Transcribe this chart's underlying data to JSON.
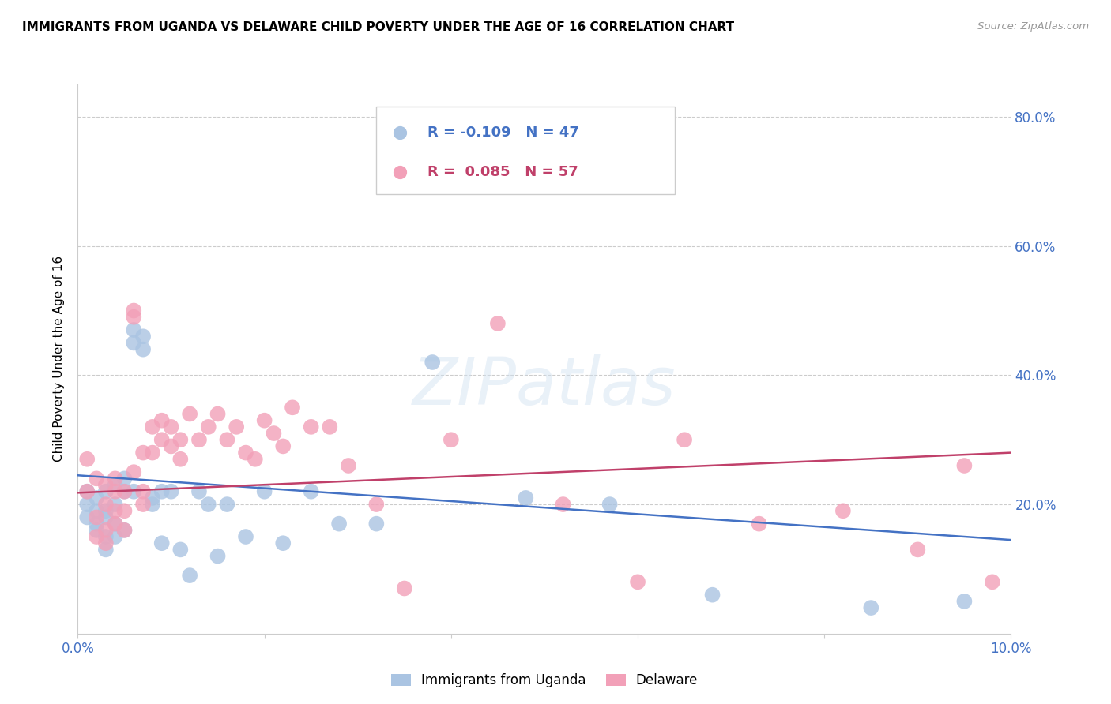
{
  "title": "IMMIGRANTS FROM UGANDA VS DELAWARE CHILD POVERTY UNDER THE AGE OF 16 CORRELATION CHART",
  "source": "Source: ZipAtlas.com",
  "ylabel": "Child Poverty Under the Age of 16",
  "xlim": [
    0.0,
    0.1
  ],
  "ylim": [
    0.0,
    0.85
  ],
  "yticks": [
    0.0,
    0.2,
    0.4,
    0.6,
    0.8
  ],
  "xticks": [
    0.0,
    0.02,
    0.04,
    0.06,
    0.08,
    0.1
  ],
  "xtick_labels": [
    "0.0%",
    "",
    "",
    "",
    "",
    "10.0%"
  ],
  "ytick_labels": [
    "",
    "20.0%",
    "40.0%",
    "60.0%",
    "80.0%"
  ],
  "blue_color": "#aac4e2",
  "pink_color": "#f2a0b8",
  "blue_line_color": "#4472c4",
  "pink_line_color": "#c0406a",
  "tick_color": "#4472c4",
  "legend_R_blue": "-0.109",
  "legend_N_blue": "47",
  "legend_R_pink": "0.085",
  "legend_N_pink": "57",
  "legend_label_blue": "Immigrants from Uganda",
  "legend_label_pink": "Delaware",
  "watermark": "ZIPatlas",
  "blue_scatter_x": [
    0.001,
    0.001,
    0.001,
    0.002,
    0.002,
    0.002,
    0.002,
    0.003,
    0.003,
    0.003,
    0.003,
    0.003,
    0.004,
    0.004,
    0.004,
    0.004,
    0.005,
    0.005,
    0.005,
    0.006,
    0.006,
    0.006,
    0.007,
    0.007,
    0.008,
    0.008,
    0.009,
    0.009,
    0.01,
    0.011,
    0.012,
    0.013,
    0.014,
    0.015,
    0.016,
    0.018,
    0.02,
    0.022,
    0.025,
    0.028,
    0.032,
    0.038,
    0.048,
    0.057,
    0.068,
    0.085,
    0.095
  ],
  "blue_scatter_y": [
    0.18,
    0.22,
    0.2,
    0.17,
    0.21,
    0.19,
    0.16,
    0.22,
    0.18,
    0.15,
    0.13,
    0.19,
    0.2,
    0.23,
    0.17,
    0.15,
    0.16,
    0.22,
    0.24,
    0.47,
    0.45,
    0.22,
    0.46,
    0.44,
    0.21,
    0.2,
    0.22,
    0.14,
    0.22,
    0.13,
    0.09,
    0.22,
    0.2,
    0.12,
    0.2,
    0.15,
    0.22,
    0.14,
    0.22,
    0.17,
    0.17,
    0.42,
    0.21,
    0.2,
    0.06,
    0.04,
    0.05
  ],
  "pink_scatter_x": [
    0.001,
    0.001,
    0.002,
    0.002,
    0.002,
    0.003,
    0.003,
    0.003,
    0.003,
    0.004,
    0.004,
    0.004,
    0.004,
    0.005,
    0.005,
    0.005,
    0.006,
    0.006,
    0.006,
    0.007,
    0.007,
    0.007,
    0.008,
    0.008,
    0.009,
    0.009,
    0.01,
    0.01,
    0.011,
    0.011,
    0.012,
    0.013,
    0.014,
    0.015,
    0.016,
    0.017,
    0.018,
    0.019,
    0.02,
    0.021,
    0.022,
    0.023,
    0.025,
    0.027,
    0.029,
    0.032,
    0.035,
    0.04,
    0.045,
    0.052,
    0.06,
    0.065,
    0.073,
    0.082,
    0.09,
    0.095,
    0.098
  ],
  "pink_scatter_y": [
    0.27,
    0.22,
    0.24,
    0.18,
    0.15,
    0.2,
    0.23,
    0.16,
    0.14,
    0.24,
    0.22,
    0.19,
    0.17,
    0.22,
    0.19,
    0.16,
    0.5,
    0.49,
    0.25,
    0.28,
    0.22,
    0.2,
    0.32,
    0.28,
    0.33,
    0.3,
    0.32,
    0.29,
    0.3,
    0.27,
    0.34,
    0.3,
    0.32,
    0.34,
    0.3,
    0.32,
    0.28,
    0.27,
    0.33,
    0.31,
    0.29,
    0.35,
    0.32,
    0.32,
    0.26,
    0.2,
    0.07,
    0.3,
    0.48,
    0.2,
    0.08,
    0.3,
    0.17,
    0.19,
    0.13,
    0.26,
    0.08
  ],
  "blue_trend_x": [
    0.0,
    0.1
  ],
  "blue_trend_y": [
    0.245,
    0.145
  ],
  "pink_trend_x": [
    0.0,
    0.1
  ],
  "pink_trend_y": [
    0.218,
    0.28
  ]
}
